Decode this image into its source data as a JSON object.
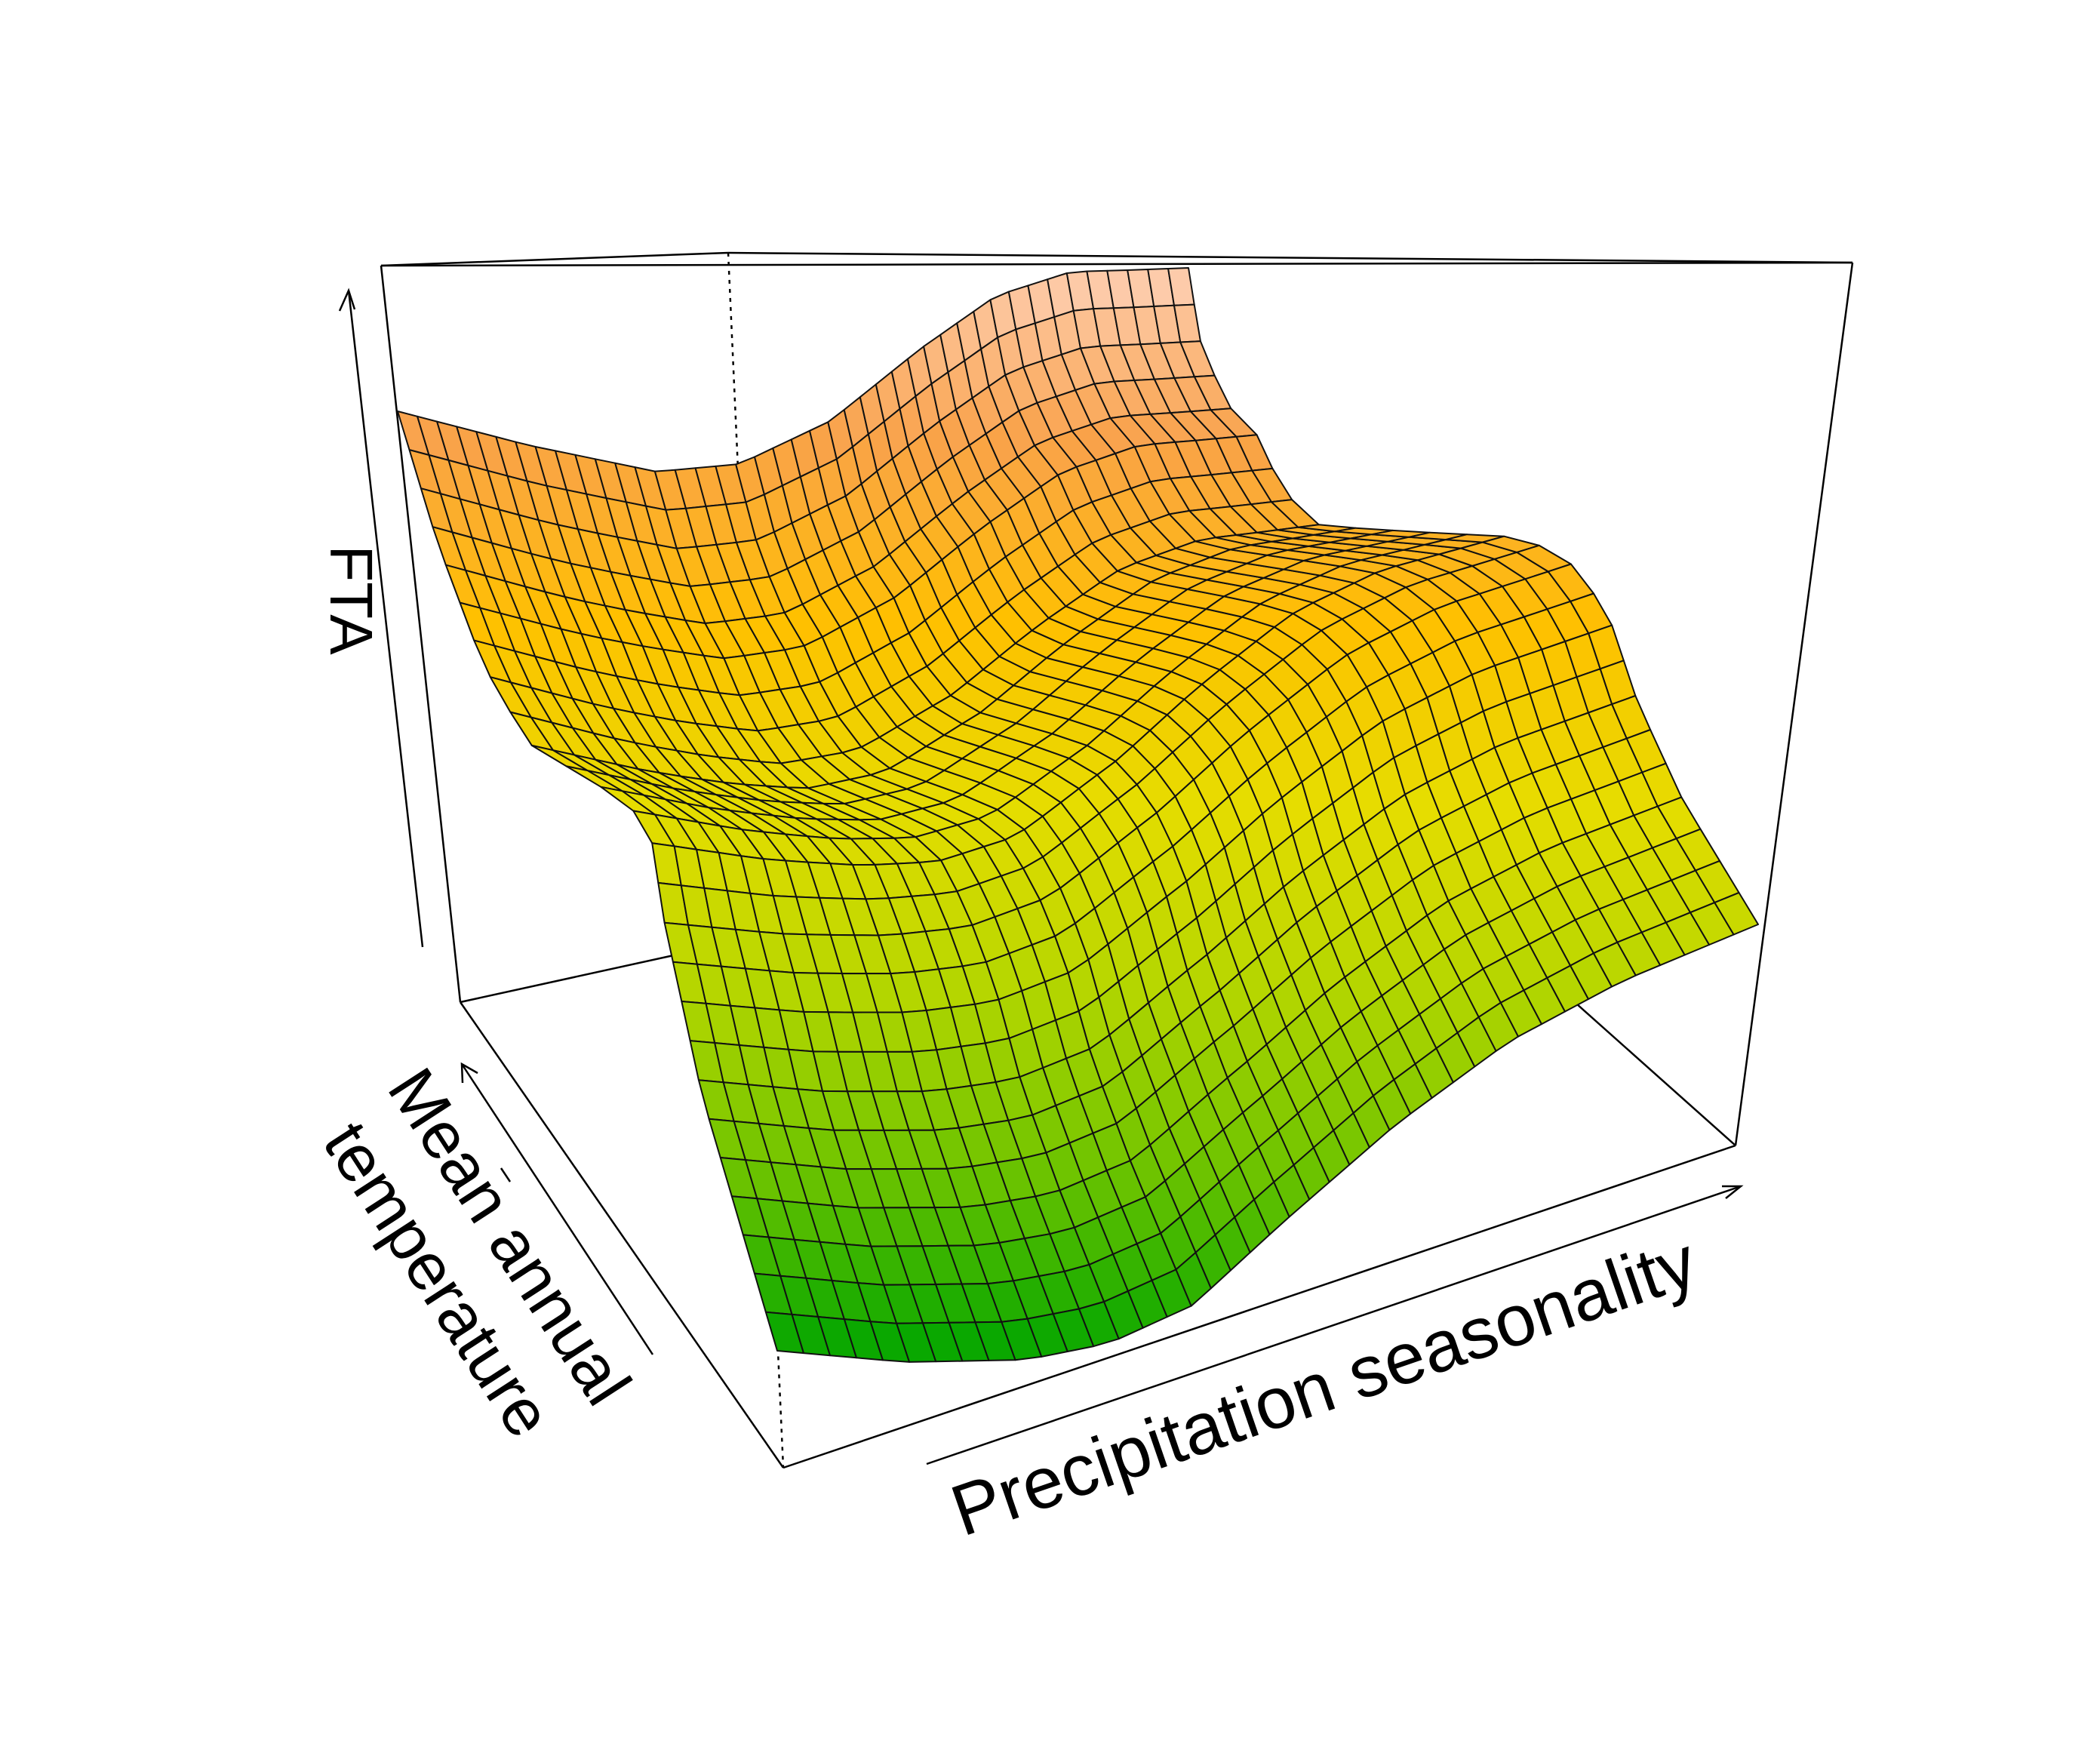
{
  "chart_data": {
    "type": "surface",
    "title": "",
    "xlabel": "Precipitation seasonality",
    "ylabel": "Mean annual temperature",
    "ylabel_lines": [
      "Mean annual",
      "temperature"
    ],
    "zlabel": "FTA",
    "ticks": "none",
    "box": true,
    "colormap": [
      "#00a500",
      "#6cc300",
      "#b4d600",
      "#e6dd00",
      "#ffc000",
      "#f9a24a",
      "#fed3bd"
    ],
    "grid_cols": 42,
    "grid_rows": 26,
    "description_values": {
      "x_range": [
        0,
        1
      ],
      "y_range": [
        0,
        1
      ],
      "z_range": [
        0,
        1
      ]
    }
  }
}
